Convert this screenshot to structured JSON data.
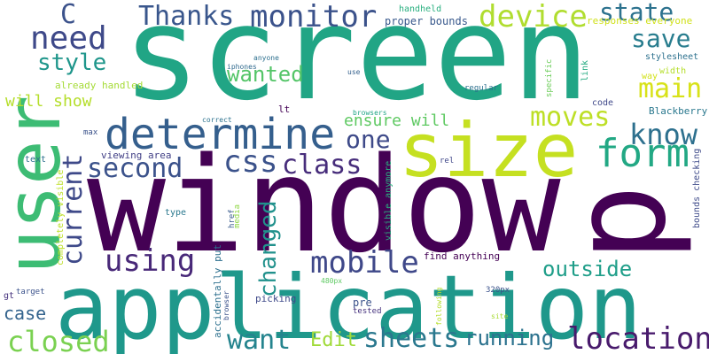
{
  "background": "#ffffff",
  "words": [
    {
      "text": "window",
      "color": "#440154",
      "rotate": false
    },
    {
      "text": "screen",
      "color": "#21a585",
      "rotate": false
    },
    {
      "text": "application",
      "color": "#1f988b",
      "rotate": false
    },
    {
      "text": "user",
      "color": "#3dbc74",
      "rotate": true
    },
    {
      "text": "p",
      "color": "#440154",
      "rotate": true
    },
    {
      "text": "size",
      "color": "#c5e021",
      "rotate": false
    },
    {
      "text": "determine",
      "color": "#355f8d",
      "rotate": false
    },
    {
      "text": "monitor",
      "color": "#3b528b",
      "rotate": false
    },
    {
      "text": "Thanks",
      "color": "#39568c",
      "rotate": false
    },
    {
      "text": "need",
      "color": "#3e4989",
      "rotate": false
    },
    {
      "text": "device",
      "color": "#b0dd2f",
      "rotate": false
    },
    {
      "text": "state",
      "color": "#2c728e",
      "rotate": false
    },
    {
      "text": "save",
      "color": "#287d8e",
      "rotate": false
    },
    {
      "text": "main",
      "color": "#d8e219",
      "rotate": false
    },
    {
      "text": "form",
      "color": "#22a884",
      "rotate": false
    },
    {
      "text": "know",
      "color": "#2d708e",
      "rotate": false
    },
    {
      "text": "moves",
      "color": "#bddf26",
      "rotate": false
    },
    {
      "text": "location",
      "color": "#481a6c",
      "rotate": false
    },
    {
      "text": "sheets",
      "color": "#2a788e",
      "rotate": false
    },
    {
      "text": "running",
      "color": "#2c728e",
      "rotate": false
    },
    {
      "text": "mobile",
      "color": "#3f4889",
      "rotate": false
    },
    {
      "text": "using",
      "color": "#482878",
      "rotate": false
    },
    {
      "text": "closed",
      "color": "#7ad151",
      "rotate": false
    },
    {
      "text": "want",
      "color": "#25848e",
      "rotate": false
    },
    {
      "text": "Edit",
      "color": "#a0da39",
      "rotate": false
    },
    {
      "text": "css",
      "color": "#3b528b",
      "rotate": false
    },
    {
      "text": "class",
      "color": "#472d7b",
      "rotate": false
    },
    {
      "text": "one",
      "color": "#3e4a89",
      "rotate": false
    },
    {
      "text": "second",
      "color": "#3b528b",
      "rotate": false
    },
    {
      "text": "wanted",
      "color": "#54c568",
      "rotate": false
    },
    {
      "text": "style",
      "color": "#1f968b",
      "rotate": false
    },
    {
      "text": "C",
      "color": "#3b528b",
      "rotate": false
    },
    {
      "text": "outside",
      "color": "#1f9e89",
      "rotate": false
    },
    {
      "text": "ensure will",
      "color": "#5ec962",
      "rotate": false
    },
    {
      "text": "changed",
      "color": "#21918c",
      "rotate": true
    },
    {
      "text": "current",
      "color": "#3e4989",
      "rotate": true
    },
    {
      "text": "will show",
      "color": "#b5de2b",
      "rotate": false
    },
    {
      "text": "case",
      "color": "#33638d",
      "rotate": false
    },
    {
      "text": "handheld",
      "color": "#29af7f",
      "rotate": false
    },
    {
      "text": "proper bounds",
      "color": "#38588c",
      "rotate": false
    },
    {
      "text": "responses everyone",
      "color": "#d0e11c",
      "rotate": false
    },
    {
      "text": "stylesheet",
      "color": "#2d718e",
      "rotate": false
    },
    {
      "text": "width",
      "color": "#b5de2b",
      "rotate": false
    },
    {
      "text": "way",
      "color": "#d2e21b",
      "rotate": false
    },
    {
      "text": "Blackberry",
      "color": "#2a788e",
      "rotate": false
    },
    {
      "text": "already handled",
      "color": "#a5db36",
      "rotate": false
    },
    {
      "text": "anyone",
      "color": "#2d708e",
      "rotate": false
    },
    {
      "text": "iphones",
      "color": "#306a8e",
      "rotate": false
    },
    {
      "text": "use",
      "color": "#34618d",
      "rotate": false
    },
    {
      "text": "regular",
      "color": "#2d708e",
      "rotate": false
    },
    {
      "text": "specific",
      "color": "#6ccd5a",
      "rotate": true
    },
    {
      "text": "link",
      "color": "#25ab82",
      "rotate": true
    },
    {
      "text": "code",
      "color": "#3f4889",
      "rotate": false
    },
    {
      "text": "lt",
      "color": "#440154",
      "rotate": false
    },
    {
      "text": "browsers",
      "color": "#21a585",
      "rotate": false
    },
    {
      "text": "correct",
      "color": "#2c728e",
      "rotate": false
    },
    {
      "text": "max",
      "color": "#3b528b",
      "rotate": false
    },
    {
      "text": "viewing area",
      "color": "#424086",
      "rotate": false
    },
    {
      "text": "text",
      "color": "#2e6f8e",
      "rotate": false
    },
    {
      "text": "completely visible",
      "color": "#bddf26",
      "rotate": true
    },
    {
      "text": "visible anymore",
      "color": "#2ab07f",
      "rotate": true
    },
    {
      "text": "type",
      "color": "#2a788e",
      "rotate": false
    },
    {
      "text": "href",
      "color": "#38598c",
      "rotate": true
    },
    {
      "text": "media",
      "color": "#8fd744",
      "rotate": true
    },
    {
      "text": "rel",
      "color": "#3f4788",
      "rotate": false
    },
    {
      "text": "find anything",
      "color": "#440154",
      "rotate": false
    },
    {
      "text": "bounds checking",
      "color": "#3e4a89",
      "rotate": true
    },
    {
      "text": "accidentally put",
      "color": "#2d708e",
      "rotate": true
    },
    {
      "text": "gt",
      "color": "#46327e",
      "rotate": false
    },
    {
      "text": "target",
      "color": "#3b528b",
      "rotate": false
    },
    {
      "text": "browser",
      "color": "#3b528b",
      "rotate": true
    },
    {
      "text": "picking",
      "color": "#3e4989",
      "rotate": false
    },
    {
      "text": "480px",
      "color": "#5ec962",
      "rotate": false
    },
    {
      "text": "pre",
      "color": "#3b528b",
      "rotate": false
    },
    {
      "text": "tested",
      "color": "#46327e",
      "rotate": false
    },
    {
      "text": "320px",
      "color": "#3b528b",
      "rotate": false
    },
    {
      "text": "following",
      "color": "#b5de2b",
      "rotate": true
    },
    {
      "text": "site",
      "color": "#a8db34",
      "rotate": false
    }
  ]
}
